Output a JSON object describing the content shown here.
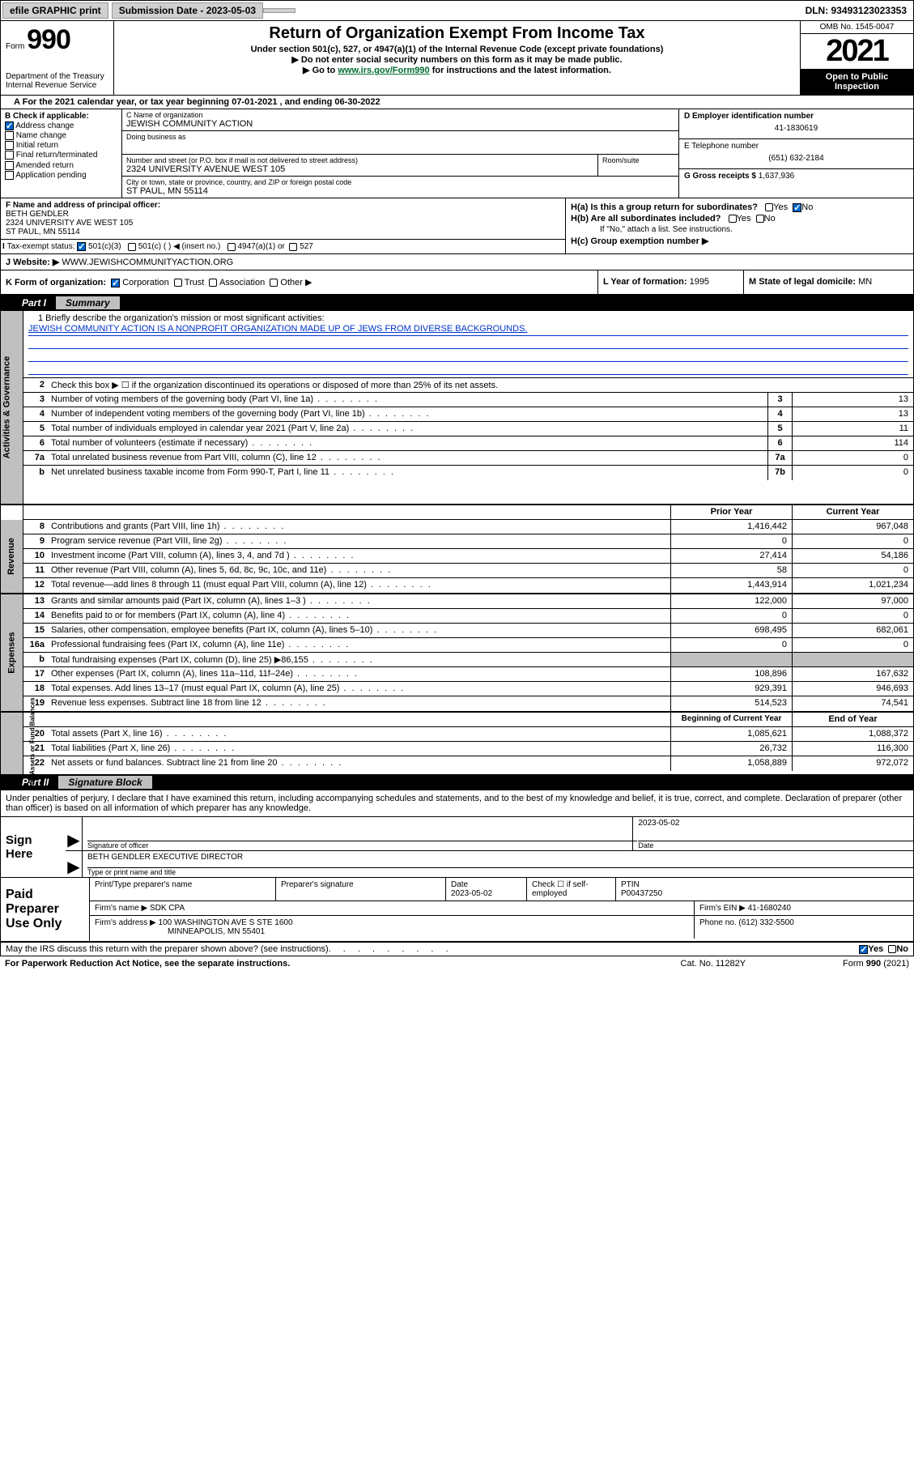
{
  "topbar": {
    "efile_label": "efile GRAPHIC print",
    "sub_date_label": "Submission Date - 2023-05-03",
    "dln": "DLN: 93493123023353"
  },
  "header": {
    "form_prefix": "Form",
    "form_num": "990",
    "dept": "Department of the Treasury",
    "irs": "Internal Revenue Service",
    "title": "Return of Organization Exempt From Income Tax",
    "sub1": "Under section 501(c), 527, or 4947(a)(1) of the Internal Revenue Code (except private foundations)",
    "sub2": "▶ Do not enter social security numbers on this form as it may be made public.",
    "link_pre": "▶ Go to ",
    "link_url": "www.irs.gov/Form990",
    "link_post": " for instructions and the latest information.",
    "omb": "OMB No. 1545-0047",
    "year": "2021",
    "inspect": "Open to Public Inspection"
  },
  "row_a": "For the 2021 calendar year, or tax year beginning 07-01-2021   , and ending 06-30-2022",
  "box_b": {
    "hdr": "B Check if applicable:",
    "items": [
      "Address change",
      "Name change",
      "Initial return",
      "Final return/terminated",
      "Amended return",
      "Application pending"
    ],
    "checked_idx": 0
  },
  "box_c": {
    "name_lbl": "C Name of organization",
    "name": "JEWISH COMMUNITY ACTION",
    "dba_lbl": "Doing business as",
    "addr_lbl": "Number and street (or P.O. box if mail is not delivered to street address)",
    "room_lbl": "Room/suite",
    "addr": "2324 UNIVERSITY AVENUE WEST 105",
    "city_lbl": "City or town, state or province, country, and ZIP or foreign postal code",
    "city": "ST PAUL, MN  55114"
  },
  "box_d": {
    "lbl": "D Employer identification number",
    "val": "41-1830619"
  },
  "box_e": {
    "lbl": "E Telephone number",
    "val": "(651) 632-2184"
  },
  "box_g": {
    "lbl": "G Gross receipts $",
    "val": "1,637,936"
  },
  "box_f": {
    "lbl": "F Name and address of principal officer:",
    "name": "BETH GENDLER",
    "addr1": "2324 UNIVERSITY AVE WEST 105",
    "addr2": "ST PAUL, MN  55114"
  },
  "box_h": {
    "a_lbl": "H(a)  Is this a group return for subordinates?",
    "b_lbl": "H(b)  Are all subordinates included?",
    "b_note": "If \"No,\" attach a list. See instructions.",
    "c_lbl": "H(c)  Group exemption number ▶",
    "yes": "Yes",
    "no": "No"
  },
  "box_i": {
    "lbl": "Tax-exempt status:",
    "o1": "501(c)(3)",
    "o2": "501(c) (  ) ◀ (insert no.)",
    "o3": "4947(a)(1) or",
    "o4": "527"
  },
  "box_j": {
    "lbl": "J   Website: ▶",
    "val": "WWW.JEWISHCOMMUNITYACTION.ORG"
  },
  "box_k": {
    "lbl": "K Form of organization:",
    "opts": [
      "Corporation",
      "Trust",
      "Association",
      "Other ▶"
    ]
  },
  "box_l": {
    "lbl": "L Year of formation:",
    "val": "1995"
  },
  "box_m": {
    "lbl": "M State of legal domicile:",
    "val": "MN"
  },
  "part1_label": "Part I",
  "part1_name": "Summary",
  "mission": {
    "line1_lbl": "1  Briefly describe the organization's mission or most significant activities:",
    "text": "JEWISH COMMUNITY ACTION IS A NONPROFIT ORGANIZATION MADE UP OF JEWS FROM DIVERSE BACKGROUNDS."
  },
  "governance_rows": [
    {
      "n": "2",
      "t": "Check this box ▶ ☐  if the organization discontinued its operations or disposed of more than 25% of its net assets.",
      "box": "",
      "v": ""
    },
    {
      "n": "3",
      "t": "Number of voting members of the governing body (Part VI, line 1a)",
      "box": "3",
      "v": "13"
    },
    {
      "n": "4",
      "t": "Number of independent voting members of the governing body (Part VI, line 1b)",
      "box": "4",
      "v": "13"
    },
    {
      "n": "5",
      "t": "Total number of individuals employed in calendar year 2021 (Part V, line 2a)",
      "box": "5",
      "v": "11"
    },
    {
      "n": "6",
      "t": "Total number of volunteers (estimate if necessary)",
      "box": "6",
      "v": "114"
    },
    {
      "n": "7a",
      "t": "Total unrelated business revenue from Part VIII, column (C), line 12",
      "box": "7a",
      "v": "0"
    },
    {
      "n": "b",
      "t": "Net unrelated business taxable income from Form 990-T, Part I, line 11",
      "box": "7b",
      "v": "0"
    }
  ],
  "vtabs": {
    "g": "Activities & Governance",
    "r": "Revenue",
    "e": "Expenses",
    "n": "Net Assets or Fund Balances"
  },
  "col_prior": "Prior Year",
  "col_current": "Current Year",
  "revenue_rows": [
    {
      "n": "8",
      "t": "Contributions and grants (Part VIII, line 1h)",
      "p": "1,416,442",
      "c": "967,048"
    },
    {
      "n": "9",
      "t": "Program service revenue (Part VIII, line 2g)",
      "p": "0",
      "c": "0"
    },
    {
      "n": "10",
      "t": "Investment income (Part VIII, column (A), lines 3, 4, and 7d )",
      "p": "27,414",
      "c": "54,186"
    },
    {
      "n": "11",
      "t": "Other revenue (Part VIII, column (A), lines 5, 6d, 8c, 9c, 10c, and 11e)",
      "p": "58",
      "c": "0"
    },
    {
      "n": "12",
      "t": "Total revenue—add lines 8 through 11 (must equal Part VIII, column (A), line 12)",
      "p": "1,443,914",
      "c": "1,021,234"
    }
  ],
  "expense_rows": [
    {
      "n": "13",
      "t": "Grants and similar amounts paid (Part IX, column (A), lines 1–3 )",
      "p": "122,000",
      "c": "97,000"
    },
    {
      "n": "14",
      "t": "Benefits paid to or for members (Part IX, column (A), line 4)",
      "p": "0",
      "c": "0"
    },
    {
      "n": "15",
      "t": "Salaries, other compensation, employee benefits (Part IX, column (A), lines 5–10)",
      "p": "698,495",
      "c": "682,061"
    },
    {
      "n": "16a",
      "t": "Professional fundraising fees (Part IX, column (A), line 11e)",
      "p": "0",
      "c": "0"
    },
    {
      "n": "b",
      "t": "Total fundraising expenses (Part IX, column (D), line 25) ▶86,155",
      "p": "",
      "c": "",
      "gray": true
    },
    {
      "n": "17",
      "t": "Other expenses (Part IX, column (A), lines 11a–11d, 11f–24e)",
      "p": "108,896",
      "c": "167,632"
    },
    {
      "n": "18",
      "t": "Total expenses. Add lines 13–17 (must equal Part IX, column (A), line 25)",
      "p": "929,391",
      "c": "946,693"
    },
    {
      "n": "19",
      "t": "Revenue less expenses. Subtract line 18 from line 12",
      "p": "514,523",
      "c": "74,541"
    }
  ],
  "col_beg": "Beginning of Current Year",
  "col_end": "End of Year",
  "net_rows": [
    {
      "n": "20",
      "t": "Total assets (Part X, line 16)",
      "p": "1,085,621",
      "c": "1,088,372"
    },
    {
      "n": "21",
      "t": "Total liabilities (Part X, line 26)",
      "p": "26,732",
      "c": "116,300"
    },
    {
      "n": "22",
      "t": "Net assets or fund balances. Subtract line 21 from line 20",
      "p": "1,058,889",
      "c": "972,072"
    }
  ],
  "part2_label": "Part II",
  "part2_name": "Signature Block",
  "declaration": "Under penalties of perjury, I declare that I have examined this return, including accompanying schedules and statements, and to the best of my knowledge and belief, it is true, correct, and complete. Declaration of preparer (other than officer) is based on all information of which preparer has any knowledge.",
  "sign": {
    "here": "Sign Here",
    "sig_lbl": "Signature of officer",
    "date_lbl": "Date",
    "date": "2023-05-02",
    "name": "BETH GENDLER  EXECUTIVE DIRECTOR",
    "name_lbl": "Type or print name and title"
  },
  "prep": {
    "title": "Paid Preparer Use Only",
    "pt_name_lbl": "Print/Type preparer's name",
    "sig_lbl": "Preparer's signature",
    "date_lbl": "Date",
    "date": "2023-05-02",
    "chk_lbl": "Check ☐ if self-employed",
    "ptin_lbl": "PTIN",
    "ptin": "P00437250",
    "firm_name_lbl": "Firm's name   ▶",
    "firm_name": "SDK CPA",
    "firm_ein_lbl": "Firm's EIN ▶",
    "firm_ein": "41-1680240",
    "firm_addr_lbl": "Firm's address ▶",
    "firm_addr1": "100 WASHINGTON AVE S STE 1600",
    "firm_addr2": "MINNEAPOLIS, MN  55401",
    "phone_lbl": "Phone no.",
    "phone": "(612) 332-5500"
  },
  "may_discuss": "May the IRS discuss this return with the preparer shown above? (see instructions)",
  "footer": {
    "left": "For Paperwork Reduction Act Notice, see the separate instructions.",
    "mid": "Cat. No. 11282Y",
    "right": "Form 990 (2021)"
  }
}
